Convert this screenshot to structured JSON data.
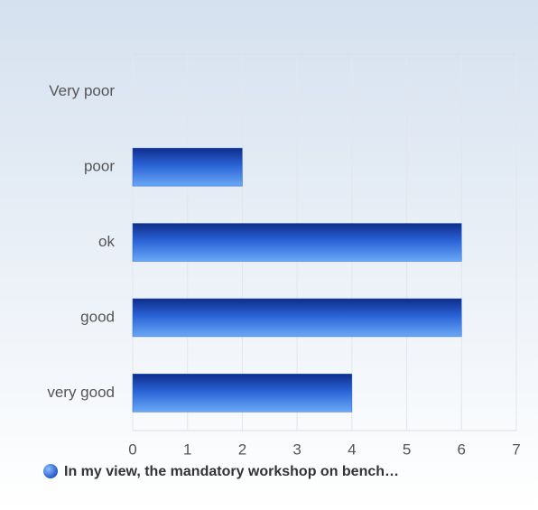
{
  "chart_data": {
    "type": "bar",
    "orientation": "horizontal",
    "categories": [
      "Very poor",
      "poor",
      "ok",
      "good",
      "very good"
    ],
    "series": [
      {
        "name": "In my view, the mandatory workshop on bench…",
        "color": "#2a63d6",
        "values": [
          0,
          2,
          6,
          6,
          4
        ]
      }
    ],
    "xlim": [
      0,
      7
    ],
    "xticks": [
      0,
      1,
      2,
      3,
      4,
      5,
      6,
      7
    ],
    "grid": true,
    "legend": "bottom"
  }
}
